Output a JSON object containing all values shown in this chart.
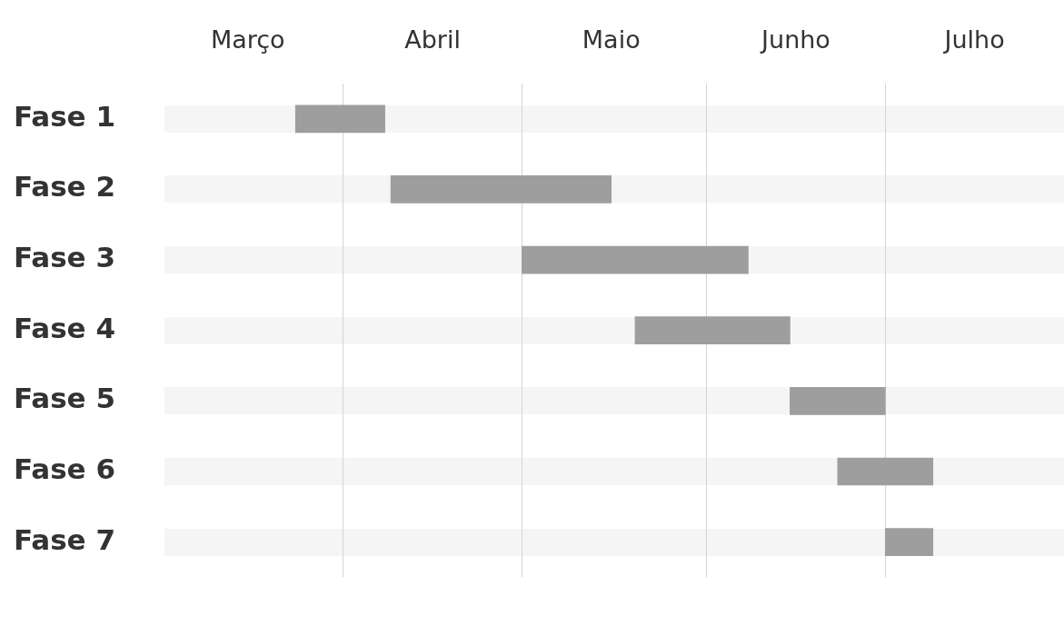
{
  "chart_data": {
    "type": "bar",
    "orientation": "horizontal",
    "categories": [
      "Fase 1",
      "Fase 2",
      "Fase 3",
      "Fase 4",
      "Fase 5",
      "Fase 6",
      "Fase 7"
    ],
    "base": [
      11405,
      11421,
      11443,
      11462,
      11488,
      11496,
      11504
    ],
    "values": [
      15,
      37,
      38,
      26,
      16,
      16,
      8
    ],
    "color": "#9e9e9e",
    "xlim": [
      "--03-02",
      "--07-31"
    ],
    "xticks": [
      {
        "value": "--03-16",
        "label": "Março"
      },
      {
        "value": "--04-01",
        "label": null
      },
      {
        "value": "--04-16",
        "label": "Abril"
      },
      {
        "value": "--05-01",
        "label": null
      },
      {
        "value": "--05-16",
        "label": "Maio"
      },
      {
        "value": "--06-01",
        "label": null
      },
      {
        "value": "--06-16",
        "label": "Junho"
      },
      {
        "value": "--07-01",
        "label": null
      },
      {
        "value": "--07-16",
        "label": "Julho"
      }
    ],
    "grid": "x"
  }
}
